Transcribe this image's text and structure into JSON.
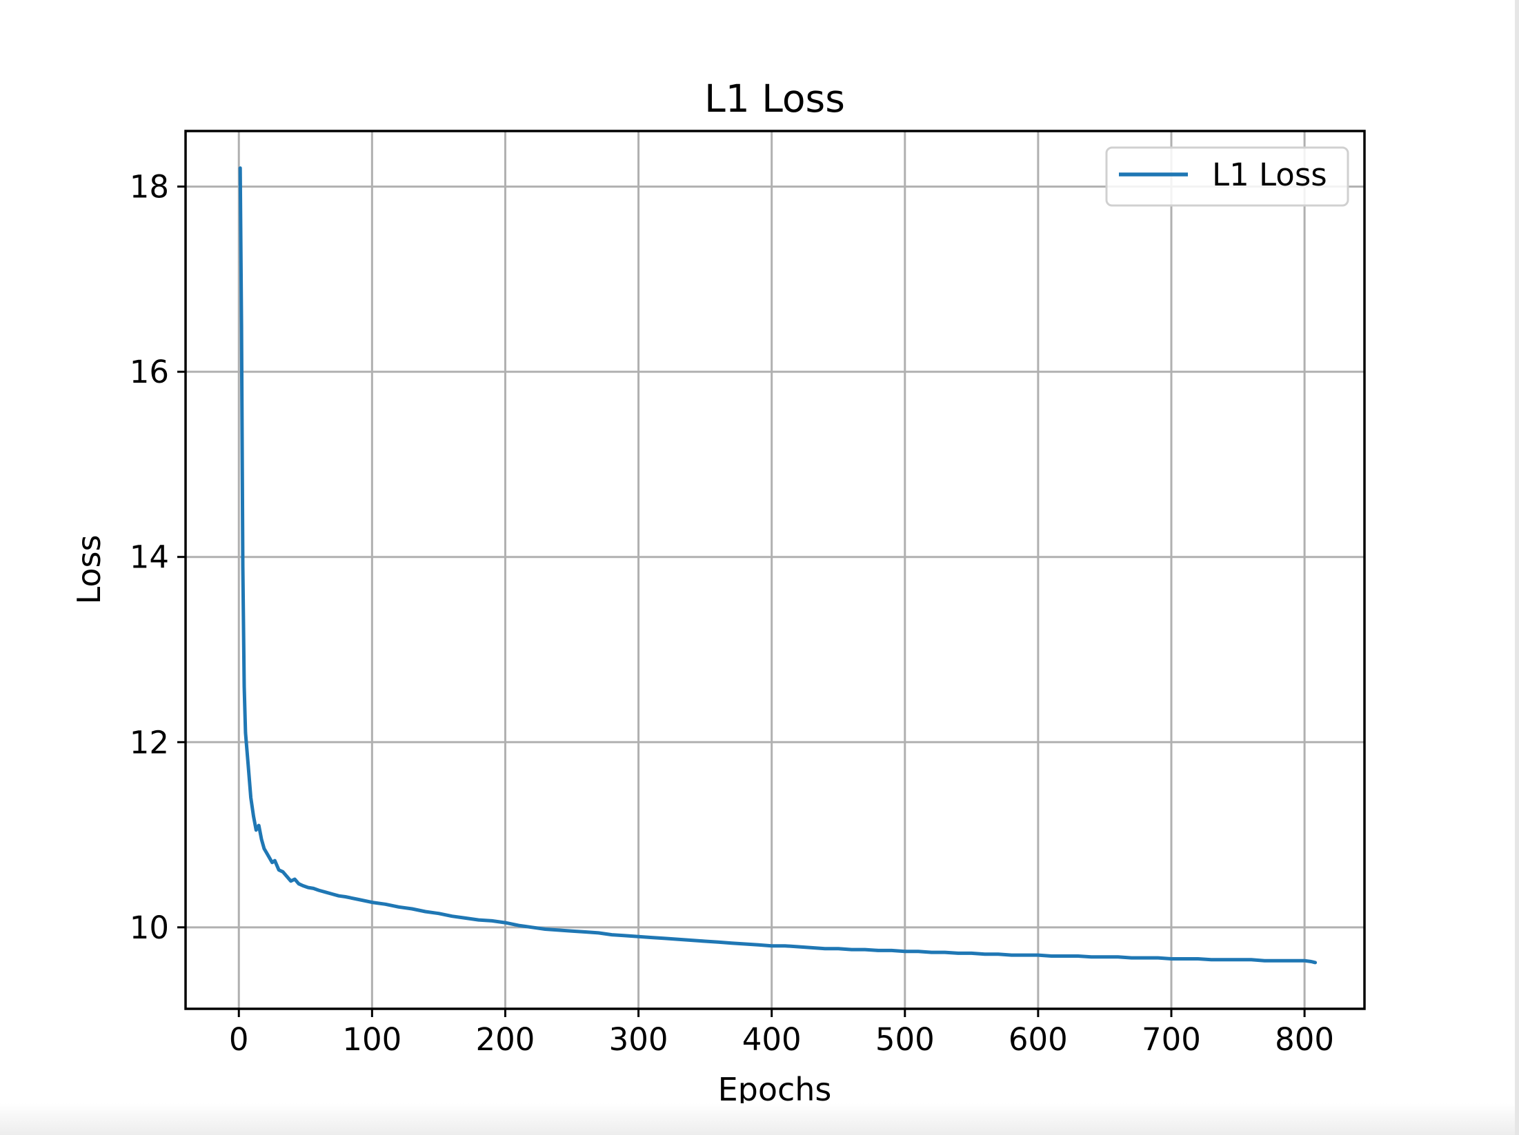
{
  "chart_data": {
    "type": "line",
    "title": "L1 Loss",
    "xlabel": "Epochs",
    "ylabel": "Loss",
    "xlim": [
      -40,
      845
    ],
    "ylim": [
      9.12,
      18.6
    ],
    "xticks": [
      0,
      100,
      200,
      300,
      400,
      500,
      600,
      700,
      800
    ],
    "yticks": [
      10,
      12,
      14,
      16,
      18
    ],
    "grid": true,
    "legend_position": "top-right",
    "series": [
      {
        "name": "L1 Loss",
        "color": "#1f77b4",
        "x": [
          1,
          2,
          3,
          4,
          5,
          7,
          9,
          11,
          13,
          15,
          17,
          19,
          21,
          23,
          25,
          27,
          30,
          33,
          36,
          39,
          42,
          45,
          48,
          52,
          56,
          60,
          65,
          70,
          75,
          80,
          90,
          100,
          110,
          120,
          130,
          140,
          150,
          160,
          170,
          180,
          190,
          200,
          210,
          220,
          230,
          240,
          250,
          260,
          270,
          280,
          290,
          300,
          310,
          320,
          330,
          340,
          350,
          360,
          370,
          380,
          390,
          400,
          410,
          420,
          430,
          440,
          450,
          460,
          470,
          480,
          490,
          500,
          510,
          520,
          530,
          540,
          550,
          560,
          570,
          580,
          590,
          600,
          610,
          620,
          630,
          640,
          650,
          660,
          670,
          680,
          690,
          700,
          710,
          720,
          730,
          740,
          750,
          760,
          770,
          780,
          790,
          800,
          805,
          808
        ],
        "y": [
          18.2,
          16.5,
          13.9,
          12.6,
          12.1,
          11.75,
          11.4,
          11.2,
          11.05,
          11.1,
          10.95,
          10.85,
          10.8,
          10.75,
          10.7,
          10.72,
          10.62,
          10.6,
          10.55,
          10.5,
          10.52,
          10.47,
          10.45,
          10.43,
          10.42,
          10.4,
          10.38,
          10.36,
          10.34,
          10.33,
          10.3,
          10.27,
          10.25,
          10.22,
          10.2,
          10.17,
          10.15,
          10.12,
          10.1,
          10.08,
          10.07,
          10.05,
          10.02,
          10.0,
          9.98,
          9.97,
          9.96,
          9.95,
          9.94,
          9.92,
          9.91,
          9.9,
          9.89,
          9.88,
          9.87,
          9.86,
          9.85,
          9.84,
          9.83,
          9.82,
          9.81,
          9.8,
          9.8,
          9.79,
          9.78,
          9.77,
          9.77,
          9.76,
          9.76,
          9.75,
          9.75,
          9.74,
          9.74,
          9.73,
          9.73,
          9.72,
          9.72,
          9.71,
          9.71,
          9.7,
          9.7,
          9.7,
          9.69,
          9.69,
          9.69,
          9.68,
          9.68,
          9.68,
          9.67,
          9.67,
          9.67,
          9.66,
          9.66,
          9.66,
          9.65,
          9.65,
          9.65,
          9.65,
          9.64,
          9.64,
          9.64,
          9.64,
          9.63,
          9.62
        ]
      }
    ]
  }
}
